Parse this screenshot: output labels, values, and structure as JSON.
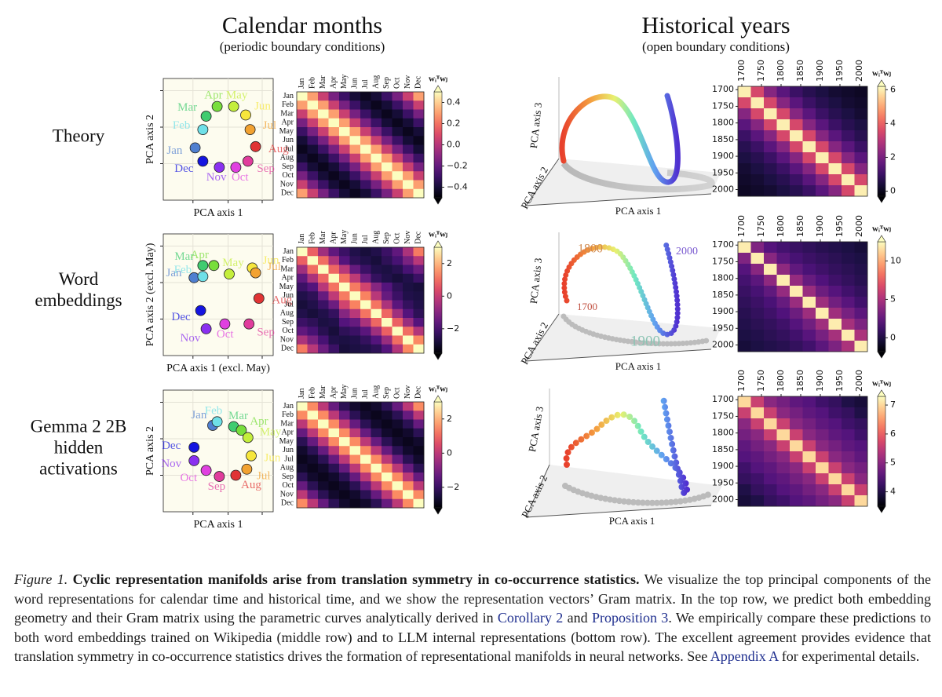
{
  "column_titles": [
    {
      "title": "Calendar months",
      "subtitle": "(periodic boundary conditions)"
    },
    {
      "title": "Historical years",
      "subtitle": "(open boundary conditions)"
    }
  ],
  "row_labels": [
    [
      "Theory"
    ],
    [
      "Word",
      "embeddings"
    ],
    [
      "Gemma 2 2B",
      "hidden",
      "activations"
    ]
  ],
  "months": [
    "Jan",
    "Feb",
    "Mar",
    "Apr",
    "May",
    "Jun",
    "Jul",
    "Aug",
    "Sep",
    "Oct",
    "Nov",
    "Dec"
  ],
  "month_colors": [
    "#4f7fd0",
    "#6fe0e8",
    "#40cc70",
    "#78de3c",
    "#c4ee3c",
    "#f6e63c",
    "#f2a232",
    "#e03434",
    "#e03c9c",
    "#e040e0",
    "#8a30f0",
    "#1414e0"
  ],
  "month_scatter": [
    {
      "xlabel": "PCA axis 1",
      "ylabel": "PCA axis 2",
      "xlim": [
        0,
        1
      ],
      "ylim": [
        0,
        1
      ],
      "x": [
        0.29,
        0.36,
        0.39,
        0.49,
        0.64,
        0.75,
        0.79,
        0.84,
        0.77,
        0.66,
        0.51,
        0.36
      ],
      "y": [
        0.43,
        0.58,
        0.69,
        0.77,
        0.77,
        0.7,
        0.58,
        0.44,
        0.32,
        0.27,
        0.27,
        0.32
      ]
    },
    {
      "xlabel": "PCA axis 1 (excl. May)",
      "ylabel": "PCA axis 2 (excl. May)",
      "xlim": [
        0,
        1
      ],
      "ylim": [
        0,
        1
      ],
      "x": [
        0.28,
        0.36,
        0.36,
        0.46,
        0.6,
        0.81,
        0.84,
        0.87,
        0.78,
        0.56,
        0.39,
        0.34
      ],
      "y": [
        0.64,
        0.65,
        0.74,
        0.74,
        0.67,
        0.72,
        0.68,
        0.47,
        0.26,
        0.26,
        0.22,
        0.37
      ]
    },
    {
      "xlabel": "PCA axis 1",
      "ylabel": "PCA axis 2",
      "xlim": [
        0,
        1
      ],
      "ylim": [
        0,
        1
      ],
      "x": [
        0.45,
        0.49,
        0.64,
        0.71,
        0.77,
        0.8,
        0.76,
        0.66,
        0.51,
        0.39,
        0.28,
        0.28
      ],
      "y": [
        0.71,
        0.74,
        0.7,
        0.67,
        0.61,
        0.46,
        0.35,
        0.3,
        0.29,
        0.34,
        0.42,
        0.53
      ]
    }
  ],
  "month_heatmaps": [
    {
      "colormap": "magma",
      "colorbar_label": "wᵢᵀwⱼ",
      "clim": [
        -0.5,
        0.5
      ],
      "cticks": [
        0.4,
        0.2,
        {
          "value": 0,
          "label": "0.0"
        },
        {
          "value": -0.2,
          "label": "−0.2"
        },
        {
          "value": -0.4,
          "label": "−0.4"
        }
      ],
      "values": [
        [
          0.5,
          0.3,
          0.05,
          -0.15,
          -0.3,
          -0.4,
          -0.45,
          -0.4,
          -0.3,
          -0.15,
          0.05,
          0.3
        ],
        [
          0.3,
          0.5,
          0.3,
          0.05,
          -0.15,
          -0.3,
          -0.4,
          -0.45,
          -0.4,
          -0.3,
          -0.15,
          0.05
        ],
        [
          0.05,
          0.3,
          0.5,
          0.3,
          0.05,
          -0.15,
          -0.3,
          -0.4,
          -0.45,
          -0.4,
          -0.3,
          -0.15
        ],
        [
          -0.15,
          0.05,
          0.3,
          0.5,
          0.3,
          0.05,
          -0.15,
          -0.3,
          -0.4,
          -0.45,
          -0.4,
          -0.3
        ],
        [
          -0.3,
          -0.15,
          0.05,
          0.3,
          0.5,
          0.3,
          0.05,
          -0.15,
          -0.3,
          -0.4,
          -0.45,
          -0.4
        ],
        [
          -0.4,
          -0.3,
          -0.15,
          0.05,
          0.3,
          0.5,
          0.3,
          0.05,
          -0.15,
          -0.3,
          -0.4,
          -0.45
        ],
        [
          -0.45,
          -0.4,
          -0.3,
          -0.15,
          0.05,
          0.3,
          0.5,
          0.3,
          0.05,
          -0.15,
          -0.3,
          -0.4
        ],
        [
          -0.4,
          -0.45,
          -0.4,
          -0.3,
          -0.15,
          0.05,
          0.3,
          0.5,
          0.3,
          0.05,
          -0.15,
          -0.3
        ],
        [
          -0.3,
          -0.4,
          -0.45,
          -0.4,
          -0.3,
          -0.15,
          0.05,
          0.3,
          0.5,
          0.3,
          0.05,
          -0.15
        ],
        [
          -0.15,
          -0.3,
          -0.4,
          -0.45,
          -0.4,
          -0.3,
          -0.15,
          0.05,
          0.3,
          0.5,
          0.3,
          0.05
        ],
        [
          0.05,
          -0.15,
          -0.3,
          -0.4,
          -0.45,
          -0.4,
          -0.3,
          -0.15,
          0.05,
          0.3,
          0.5,
          0.3
        ],
        [
          0.3,
          0.05,
          -0.15,
          -0.3,
          -0.4,
          -0.45,
          -0.4,
          -0.3,
          -0.15,
          0.05,
          0.3,
          0.5
        ]
      ]
    },
    {
      "colormap": "magma",
      "colorbar_label": "wᵢᵀwⱼ",
      "clim": [
        -3.5,
        3
      ],
      "cticks": [
        2,
        0,
        {
          "value": -2,
          "label": "−2"
        }
      ],
      "values": [
        [
          3,
          0.8,
          -0.6,
          -1.6,
          -2.2,
          -2.6,
          -2.8,
          -2.6,
          -2.2,
          -1.6,
          -0.4,
          1.2
        ],
        [
          0.8,
          3,
          1.0,
          -0.4,
          -1.8,
          -2.4,
          -2.6,
          -2.8,
          -2.4,
          -2.0,
          -1.2,
          -0.2
        ],
        [
          -0.6,
          1.0,
          3,
          0.9,
          -0.2,
          -1.5,
          -2.2,
          -2.6,
          -2.7,
          -2.5,
          -2.0,
          -1.4
        ],
        [
          -1.6,
          -0.4,
          0.9,
          3,
          1.1,
          -0.1,
          -1.4,
          -2.3,
          -2.6,
          -2.8,
          -2.6,
          -2.2
        ],
        [
          -2.2,
          -1.8,
          -0.2,
          1.1,
          3,
          1.2,
          0.2,
          -1.0,
          -1.8,
          -2.4,
          -2.7,
          -2.8
        ],
        [
          -2.6,
          -2.4,
          -1.5,
          -0.1,
          1.2,
          3,
          1.3,
          -0.2,
          -1.5,
          -2.2,
          -2.6,
          -2.7
        ],
        [
          -2.8,
          -2.6,
          -2.2,
          -1.4,
          0.2,
          1.3,
          3,
          1.1,
          -0.4,
          -1.7,
          -2.3,
          -2.6
        ],
        [
          -2.6,
          -2.8,
          -2.6,
          -2.3,
          -1.0,
          -0.2,
          1.1,
          3,
          0.9,
          -0.6,
          -1.8,
          -2.4
        ],
        [
          -2.2,
          -2.4,
          -2.7,
          -2.6,
          -1.8,
          -1.5,
          -0.4,
          0.9,
          3,
          0.8,
          -0.7,
          -1.8
        ],
        [
          -1.6,
          -2.0,
          -2.5,
          -2.8,
          -2.4,
          -2.2,
          -1.7,
          -0.6,
          0.8,
          3,
          1.0,
          -0.3
        ],
        [
          -0.4,
          -1.2,
          -2.0,
          -2.6,
          -2.7,
          -2.6,
          -2.3,
          -1.8,
          -0.7,
          1.0,
          3,
          1.4
        ],
        [
          1.2,
          -0.2,
          -1.4,
          -2.2,
          -2.8,
          -2.7,
          -2.6,
          -2.4,
          -1.8,
          -0.3,
          1.4,
          3
        ]
      ]
    },
    {
      "colormap": "magma",
      "colorbar_label": "wᵢᵀwⱼ",
      "clim": [
        -3.2,
        3
      ],
      "cticks": [
        2,
        0,
        {
          "value": -2,
          "label": "−2"
        }
      ],
      "values": [
        [
          3,
          1.5,
          0,
          -1.3,
          -2.2,
          -2.7,
          -2.9,
          -2.7,
          -2.2,
          -1.3,
          0,
          1.5
        ],
        [
          1.5,
          3,
          1.5,
          0,
          -1.3,
          -2.2,
          -2.7,
          -2.9,
          -2.7,
          -2.2,
          -1.3,
          0
        ],
        [
          0,
          1.5,
          3,
          1.5,
          0,
          -1.3,
          -2.2,
          -2.7,
          -2.9,
          -2.7,
          -2.2,
          -1.3
        ],
        [
          -1.3,
          0,
          1.5,
          3,
          1.5,
          0,
          -1.3,
          -2.2,
          -2.7,
          -2.9,
          -2.7,
          -2.2
        ],
        [
          -2.2,
          -1.3,
          0,
          1.5,
          3,
          1.5,
          0,
          -1.3,
          -2.2,
          -2.7,
          -2.9,
          -2.7
        ],
        [
          -2.7,
          -2.2,
          -1.3,
          0,
          1.5,
          3,
          1.5,
          0,
          -1.3,
          -2.2,
          -2.7,
          -2.9
        ],
        [
          -2.9,
          -2.7,
          -2.2,
          -1.3,
          0,
          1.5,
          3,
          1.5,
          0,
          -1.3,
          -2.2,
          -2.7
        ],
        [
          -2.7,
          -2.9,
          -2.7,
          -2.2,
          -1.3,
          0,
          1.5,
          3,
          1.5,
          0,
          -1.3,
          -2.2
        ],
        [
          -2.2,
          -2.7,
          -2.9,
          -2.7,
          -2.2,
          -1.3,
          0,
          1.5,
          3,
          1.5,
          0,
          -1.3
        ],
        [
          -1.3,
          -2.2,
          -2.7,
          -2.9,
          -2.7,
          -2.2,
          -1.3,
          0,
          1.5,
          3,
          1.5,
          0
        ],
        [
          0,
          -1.3,
          -2.2,
          -2.7,
          -2.9,
          -2.7,
          -2.2,
          -1.3,
          0,
          1.5,
          3,
          1.5
        ],
        [
          1.5,
          0,
          -1.3,
          -2.2,
          -2.7,
          -2.9,
          -2.7,
          -2.2,
          -1.3,
          0,
          1.5,
          3
        ]
      ]
    }
  ],
  "year_embeddings": [
    {
      "xlabel": "PCA axis 1",
      "ylabel": "PCA axis 2",
      "zlabel": "PCA axis 3",
      "annotations": []
    },
    {
      "xlabel": "PCA axis 1",
      "ylabel": "PCA axis 2",
      "zlabel": "PCA axis 3",
      "annotations": [
        "1800",
        "2000",
        "1700",
        "1900"
      ]
    },
    {
      "xlabel": "PCA axis 1",
      "ylabel": "PCA axis 2",
      "zlabel": "PCA axis 3",
      "annotations": []
    }
  ],
  "year_ticks": [
    1700,
    1750,
    1800,
    1850,
    1900,
    1950,
    2000
  ],
  "year_heatmaps": [
    {
      "colormap": "magma",
      "colorbar_label": "wᵢᵀwⱼ",
      "xlim": [
        1690,
        2020
      ],
      "clim": [
        -0.3,
        6.2
      ],
      "cticks": [
        6,
        4,
        2,
        0
      ],
      "values": [
        [
          6,
          3.5,
          2.2,
          1.5,
          1.0,
          0.7,
          0.5,
          0.3,
          0.2,
          0.1
        ],
        [
          3.5,
          6,
          3.5,
          2.2,
          1.5,
          1.0,
          0.7,
          0.5,
          0.3,
          0.2
        ],
        [
          2.2,
          3.5,
          6,
          3.5,
          2.2,
          1.5,
          1.0,
          0.7,
          0.5,
          0.3
        ],
        [
          1.5,
          2.2,
          3.5,
          6,
          3.5,
          2.2,
          1.5,
          1.0,
          0.7,
          0.5
        ],
        [
          1.0,
          1.5,
          2.2,
          3.5,
          6,
          3.5,
          2.2,
          1.5,
          1.0,
          0.7
        ],
        [
          0.7,
          1.0,
          1.5,
          2.2,
          3.5,
          6,
          3.5,
          2.2,
          1.5,
          1.0
        ],
        [
          0.5,
          0.7,
          1.0,
          1.5,
          2.2,
          3.5,
          6,
          3.5,
          2.2,
          1.5
        ],
        [
          0.3,
          0.5,
          0.7,
          1.0,
          1.5,
          2.2,
          3.5,
          6,
          3.5,
          2.2
        ],
        [
          0.2,
          0.3,
          0.5,
          0.7,
          1.0,
          1.5,
          2.2,
          3.5,
          6,
          3.5
        ],
        [
          0.1,
          0.2,
          0.3,
          0.5,
          0.7,
          1.0,
          1.5,
          2.2,
          3.5,
          6
        ]
      ]
    },
    {
      "colormap": "magma",
      "colorbar_label": "wᵢᵀwⱼ",
      "xlim": [
        1690,
        2020
      ],
      "clim": [
        -1.8,
        12.5
      ],
      "cticks": [
        10,
        5,
        0
      ],
      "values": [
        [
          12,
          3.5,
          2.0,
          1.4,
          1.0,
          0.7,
          0.4,
          0.2,
          0,
          -0.3
        ],
        [
          3.5,
          12,
          3.8,
          2.2,
          1.5,
          1.1,
          0.8,
          0.5,
          0.2,
          0
        ],
        [
          2.0,
          3.8,
          12,
          4.0,
          2.4,
          1.6,
          1.2,
          0.8,
          0.5,
          0.2
        ],
        [
          1.4,
          2.2,
          4.0,
          12,
          4.2,
          2.6,
          1.8,
          1.2,
          0.8,
          0.4
        ],
        [
          1.0,
          1.5,
          2.4,
          4.2,
          12,
          4.4,
          2.8,
          2.0,
          1.3,
          0.8
        ],
        [
          0.7,
          1.1,
          1.6,
          2.6,
          4.4,
          12,
          4.5,
          3.0,
          2.1,
          1.3
        ],
        [
          0.4,
          0.8,
          1.2,
          1.8,
          2.8,
          4.5,
          12,
          4.6,
          3.2,
          2.2
        ],
        [
          0.2,
          0.5,
          0.8,
          1.2,
          2.0,
          3.0,
          4.6,
          12,
          4.8,
          3.4
        ],
        [
          0,
          0.2,
          0.5,
          0.8,
          1.3,
          2.1,
          3.2,
          4.8,
          12,
          5.0
        ],
        [
          -0.3,
          0,
          0.2,
          0.4,
          0.8,
          1.3,
          2.2,
          3.4,
          5.0,
          12
        ]
      ]
    },
    {
      "colormap": "magma",
      "colorbar_label": "wᵢᵀwⱼ",
      "xlim": [
        1690,
        2020
      ],
      "clim": [
        3.5,
        7.3
      ],
      "cticks": [
        7,
        6,
        5,
        4
      ],
      "values": [
        [
          7,
          5.6,
          5.0,
          4.8,
          4.6,
          4.5,
          4.3,
          4.2,
          4.0,
          3.9
        ],
        [
          5.6,
          7,
          5.6,
          5.0,
          4.8,
          4.6,
          4.5,
          4.3,
          4.2,
          4.0
        ],
        [
          5.0,
          5.6,
          7,
          5.6,
          5.0,
          4.8,
          4.6,
          4.5,
          4.3,
          4.2
        ],
        [
          4.8,
          5.0,
          5.6,
          7,
          5.6,
          5.0,
          4.8,
          4.6,
          4.5,
          4.3
        ],
        [
          4.6,
          4.8,
          5.0,
          5.6,
          7,
          5.6,
          5.0,
          4.8,
          4.6,
          4.5
        ],
        [
          4.5,
          4.6,
          4.8,
          5.0,
          5.6,
          7,
          5.6,
          5.0,
          4.8,
          4.6
        ],
        [
          4.3,
          4.5,
          4.6,
          4.8,
          5.0,
          5.6,
          7,
          5.6,
          5.0,
          4.8
        ],
        [
          4.2,
          4.3,
          4.5,
          4.6,
          4.8,
          5.0,
          5.6,
          7,
          5.6,
          5.0
        ],
        [
          4.0,
          4.2,
          4.3,
          4.5,
          4.6,
          4.8,
          5.0,
          5.6,
          7,
          5.6
        ],
        [
          3.9,
          4.0,
          4.2,
          4.3,
          4.5,
          4.6,
          4.8,
          5.0,
          5.6,
          7
        ]
      ]
    }
  ],
  "caption": {
    "label": "Figure 1.",
    "title": " Cyclic representation manifolds arise from translation symmetry in co-occurrence statistics.",
    "text_1": " We visualize the top principal components of the word representations for calendar time and historical time, and we show the representation vectors’ Gram matrix. In the top row, we predict both embedding geometry and their Gram matrix using the parametric curves analytically derived in ",
    "link_1": "Corollary 2",
    "text_2": " and ",
    "link_2": "Proposition 3",
    "text_3": ". We empirically compare these predictions to both word embeddings trained on Wikipedia (middle row) and to LLM internal representations (bottom row). The excellent agreement provides evidence that translation symmetry in co-occurrence statistics drives the formation of representational manifolds in neural networks. See ",
    "link_3": "Appendix A",
    "text_4": " for experimental details."
  }
}
